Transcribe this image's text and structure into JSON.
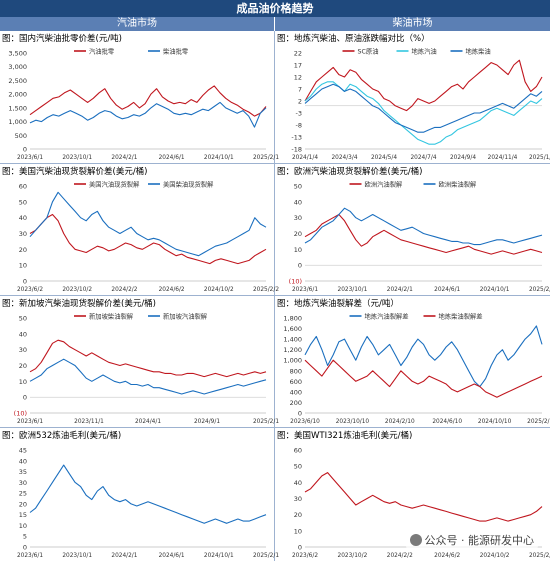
{
  "header": {
    "title": "成品油价格趋势",
    "left_column": "汽油市场",
    "right_column": "柴油市场"
  },
  "watermark": "公众号 · 能源研发中心",
  "colors": {
    "red": "#c0171f",
    "blue": "#1b6fbf",
    "cyan": "#33c6e0",
    "header_bg": "#1f497d",
    "subheader_bg": "#5b7fb4"
  },
  "chart_data": [
    {
      "id": "c1",
      "type": "line",
      "title": "图：国内汽柴油批零价差(元/吨)",
      "ylim": [
        0,
        3500
      ],
      "yticks": [
        "0",
        "500",
        "1,000",
        "1,500",
        "2,000",
        "2,500",
        "3,000",
        "3,500"
      ],
      "xticks": [
        "2023/6/1",
        "2023/10/1",
        "2024/2/1",
        "2024/6/1",
        "2024/10/1",
        "2025/2/1"
      ],
      "legend": "top-center",
      "series": [
        {
          "name": "汽油批零",
          "color": "red",
          "values": [
            1250,
            1400,
            1550,
            1700,
            1850,
            1900,
            2050,
            2150,
            2000,
            1850,
            1700,
            1850,
            2050,
            2200,
            1850,
            1600,
            1450,
            1550,
            1700,
            1500,
            1650,
            2000,
            2200,
            1900,
            1750,
            1650,
            1700,
            1650,
            1800,
            1700,
            1950,
            2150,
            2300,
            2050,
            1850,
            1700,
            1600,
            1450,
            1350,
            1200,
            1300,
            1550
          ]
        },
        {
          "name": "柴油批零",
          "color": "blue",
          "values": [
            950,
            1050,
            1000,
            1150,
            1250,
            1200,
            1300,
            1400,
            1300,
            1200,
            1050,
            1150,
            1300,
            1400,
            1350,
            1200,
            1100,
            1150,
            1250,
            1200,
            1300,
            1500,
            1650,
            1550,
            1450,
            1300,
            1250,
            1300,
            1250,
            1350,
            1450,
            1400,
            1550,
            1700,
            1500,
            1400,
            1300,
            1400,
            1200,
            800,
            1300,
            1500
          ]
        }
      ]
    },
    {
      "id": "c2",
      "type": "line",
      "title": "图：地炼汽柴油、原油涨跌幅对比（%）",
      "ylim": [
        -18,
        22
      ],
      "yticks": [
        "-18",
        "-13",
        "-8",
        "-3",
        "2",
        "7",
        "12",
        "17",
        "22"
      ],
      "xticks": [
        "2024/1/4",
        "2024/3/4",
        "2024/5/4",
        "2024/7/4",
        "2024/9/4",
        "2024/11/4",
        "2025/1/4"
      ],
      "legend": "top-center",
      "series": [
        {
          "name": "SC原油",
          "color": "red",
          "values": [
            2,
            6,
            10,
            12,
            14,
            16,
            13,
            12,
            15,
            14,
            11,
            9,
            7,
            6,
            3,
            2,
            0,
            -1,
            -2,
            0,
            3,
            2,
            1,
            2,
            4,
            6,
            8,
            9,
            7,
            10,
            12,
            14,
            16,
            18,
            17,
            15,
            13,
            17,
            19,
            10,
            6,
            8,
            12
          ]
        },
        {
          "name": "地炼汽油",
          "color": "cyan",
          "values": [
            2,
            4,
            7,
            9,
            10,
            10,
            8,
            6,
            9,
            8,
            6,
            4,
            3,
            1,
            -2,
            -4,
            -6,
            -8,
            -10,
            -12,
            -14,
            -15,
            -16,
            -16,
            -15,
            -13,
            -12,
            -10,
            -9,
            -8,
            -7,
            -6,
            -4,
            -2,
            -1,
            -2,
            -3,
            -4,
            -2,
            0,
            2,
            1,
            3
          ]
        },
        {
          "name": "地炼柴油",
          "color": "blue",
          "values": [
            1,
            3,
            5,
            7,
            8,
            9,
            8,
            6,
            7,
            6,
            4,
            2,
            0,
            -1,
            -3,
            -5,
            -7,
            -8,
            -9,
            -10,
            -11,
            -11,
            -10,
            -9,
            -9,
            -8,
            -7,
            -6,
            -5,
            -4,
            -3,
            -3,
            -2,
            -1,
            0,
            1,
            0,
            -1,
            1,
            3,
            5,
            4,
            6
          ]
        }
      ]
    },
    {
      "id": "c3",
      "type": "line",
      "title": "图：美国汽柴油现货裂解价差(美元/桶)",
      "ylim": [
        0,
        60
      ],
      "yticks": [
        "0",
        "10",
        "20",
        "30",
        "40",
        "50",
        "60"
      ],
      "xticks": [
        "2023/6/2",
        "2023/10/2",
        "2024/2/2",
        "2024/6/2",
        "2024/10/2",
        "2025/2/2"
      ],
      "legend": "top-center",
      "series": [
        {
          "name": "美国汽油现货裂解",
          "color": "red",
          "values": [
            30,
            32,
            36,
            40,
            42,
            38,
            30,
            24,
            20,
            19,
            18,
            20,
            22,
            21,
            19,
            20,
            22,
            24,
            23,
            21,
            20,
            22,
            24,
            23,
            20,
            18,
            16,
            17,
            15,
            14,
            13,
            12,
            11,
            13,
            14,
            13,
            12,
            11,
            12,
            13,
            16,
            18,
            20
          ]
        },
        {
          "name": "美国柴油现货裂解",
          "color": "blue",
          "values": [
            28,
            32,
            36,
            40,
            50,
            56,
            52,
            48,
            44,
            40,
            38,
            42,
            44,
            38,
            34,
            32,
            30,
            32,
            34,
            30,
            28,
            26,
            27,
            26,
            24,
            22,
            20,
            19,
            18,
            17,
            16,
            18,
            20,
            22,
            23,
            24,
            26,
            28,
            30,
            32,
            40,
            36,
            34
          ]
        }
      ]
    },
    {
      "id": "c4",
      "type": "line",
      "title": "图：欧洲汽柴油现货裂解价差(美元/桶)",
      "ylim": [
        -10,
        50
      ],
      "yticks": [
        "(10)",
        "0",
        "10",
        "20",
        "30",
        "40",
        "50"
      ],
      "xticks": [
        "2023/6/1",
        "2023/10/1",
        "2024/2/1",
        "2024/6/1",
        "2024/10/1",
        "2025/2/1"
      ],
      "legend": "top-center",
      "series": [
        {
          "name": "欧洲汽油裂解",
          "color": "red",
          "values": [
            18,
            20,
            22,
            26,
            28,
            30,
            32,
            28,
            22,
            16,
            12,
            14,
            18,
            20,
            22,
            20,
            18,
            16,
            15,
            14,
            13,
            12,
            11,
            10,
            9,
            8,
            9,
            10,
            11,
            12,
            10,
            9,
            8,
            7,
            8,
            9,
            8,
            7,
            8,
            9,
            10,
            9,
            8
          ]
        },
        {
          "name": "欧洲柴油裂解",
          "color": "blue",
          "values": [
            14,
            16,
            20,
            24,
            26,
            28,
            32,
            36,
            34,
            30,
            28,
            30,
            32,
            30,
            28,
            26,
            24,
            22,
            23,
            24,
            22,
            20,
            19,
            18,
            17,
            16,
            15,
            15,
            14,
            14,
            13,
            13,
            14,
            15,
            16,
            16,
            15,
            14,
            15,
            16,
            17,
            18,
            19
          ]
        }
      ]
    },
    {
      "id": "c5",
      "type": "line",
      "title": "图：新加坡汽柴油现货裂解价差(美元/桶)",
      "ylim": [
        -10,
        50
      ],
      "yticks": [
        "(10)",
        "0",
        "10",
        "20",
        "30",
        "40",
        "50"
      ],
      "xticks": [
        "2023/6/1",
        "2023/11/1",
        "2024/4/1",
        "2024/9/1",
        "2025/2/1"
      ],
      "legend": "top-center",
      "series": [
        {
          "name": "新加坡柴油裂解",
          "color": "red",
          "values": [
            16,
            18,
            22,
            28,
            34,
            36,
            35,
            32,
            30,
            28,
            26,
            28,
            26,
            24,
            22,
            21,
            20,
            21,
            20,
            19,
            18,
            17,
            16,
            16,
            15,
            15,
            14,
            14,
            15,
            15,
            14,
            13,
            14,
            15,
            14,
            13,
            14,
            15,
            14,
            15,
            16,
            15,
            16
          ]
        },
        {
          "name": "新加坡汽油裂解",
          "color": "blue",
          "values": [
            10,
            12,
            14,
            18,
            20,
            22,
            24,
            22,
            20,
            16,
            12,
            10,
            12,
            14,
            12,
            10,
            9,
            10,
            8,
            8,
            7,
            8,
            6,
            6,
            5,
            4,
            3,
            2,
            3,
            4,
            3,
            2,
            3,
            4,
            5,
            6,
            7,
            8,
            7,
            8,
            9,
            10,
            11
          ]
        }
      ]
    },
    {
      "id": "c6",
      "type": "line",
      "title": "图：地炼汽柴油裂解差（元/吨）",
      "ylim": [
        0,
        1800
      ],
      "yticks": [
        "0",
        "200",
        "400",
        "600",
        "800",
        "1,000",
        "1,200",
        "1,400",
        "1,600",
        "1,800"
      ],
      "xticks": [
        "2023/6/10",
        "2023/10/10",
        "2024/2/10",
        "2024/6/10",
        "2024/10/10",
        "2025/2/10"
      ],
      "legend": "top-center",
      "series": [
        {
          "name": "地炼汽油裂解差",
          "color": "blue",
          "values": [
            1100,
            1300,
            1450,
            1200,
            900,
            1100,
            1350,
            1400,
            1200,
            1000,
            1250,
            1450,
            1300,
            1100,
            1200,
            1300,
            1100,
            900,
            1050,
            1250,
            1400,
            1300,
            1100,
            1000,
            1100,
            1250,
            1350,
            1200,
            1000,
            800,
            600,
            500,
            650,
            900,
            1100,
            1200,
            1000,
            1100,
            1250,
            1400,
            1500,
            1650,
            1300
          ]
        },
        {
          "name": "地炼柴油裂解差",
          "color": "red",
          "values": [
            1000,
            900,
            800,
            700,
            850,
            1000,
            900,
            800,
            700,
            600,
            650,
            700,
            800,
            700,
            600,
            500,
            650,
            800,
            700,
            600,
            550,
            600,
            700,
            650,
            600,
            550,
            450,
            400,
            450,
            500,
            550,
            500,
            400,
            350,
            300,
            350,
            400,
            450,
            500,
            550,
            600,
            650,
            700
          ]
        }
      ]
    },
    {
      "id": "c7",
      "type": "line",
      "title": "图：欧洲532炼油毛利(美元/桶)",
      "ylim": [
        0,
        45
      ],
      "yticks": [
        "0",
        "5",
        "10",
        "15",
        "20",
        "25",
        "30",
        "35",
        "40",
        "45"
      ],
      "xticks": [
        "2023/6/1",
        "2023/10/1",
        "2024/2/1",
        "2024/6/1",
        "2024/10/1",
        "2025/2/1"
      ],
      "legend": "none",
      "series": [
        {
          "name": "",
          "color": "blue",
          "values": [
            16,
            18,
            22,
            26,
            30,
            34,
            38,
            34,
            30,
            28,
            24,
            22,
            26,
            28,
            24,
            22,
            21,
            22,
            20,
            19,
            20,
            21,
            20,
            19,
            18,
            17,
            16,
            15,
            14,
            13,
            12,
            11,
            12,
            13,
            12,
            11,
            12,
            13,
            12,
            12,
            13,
            14,
            15
          ]
        }
      ]
    },
    {
      "id": "c8",
      "type": "line",
      "title": "图：美国WTI321炼油毛利(美元/桶)",
      "ylim": [
        0,
        60
      ],
      "yticks": [
        "0",
        "10",
        "20",
        "30",
        "40",
        "50",
        "60"
      ],
      "xticks": [
        "2023/6/2",
        "2023/10/2",
        "2024/2/2",
        "2024/6/2",
        "2024/10/2",
        "2025/2/2"
      ],
      "legend": "none",
      "series": [
        {
          "name": "",
          "color": "red",
          "values": [
            34,
            36,
            40,
            44,
            46,
            42,
            38,
            34,
            30,
            26,
            28,
            30,
            32,
            30,
            28,
            27,
            28,
            26,
            25,
            24,
            25,
            26,
            25,
            24,
            23,
            22,
            21,
            20,
            19,
            18,
            17,
            16,
            16,
            17,
            18,
            17,
            16,
            17,
            18,
            19,
            20,
            22,
            25
          ]
        }
      ]
    }
  ]
}
